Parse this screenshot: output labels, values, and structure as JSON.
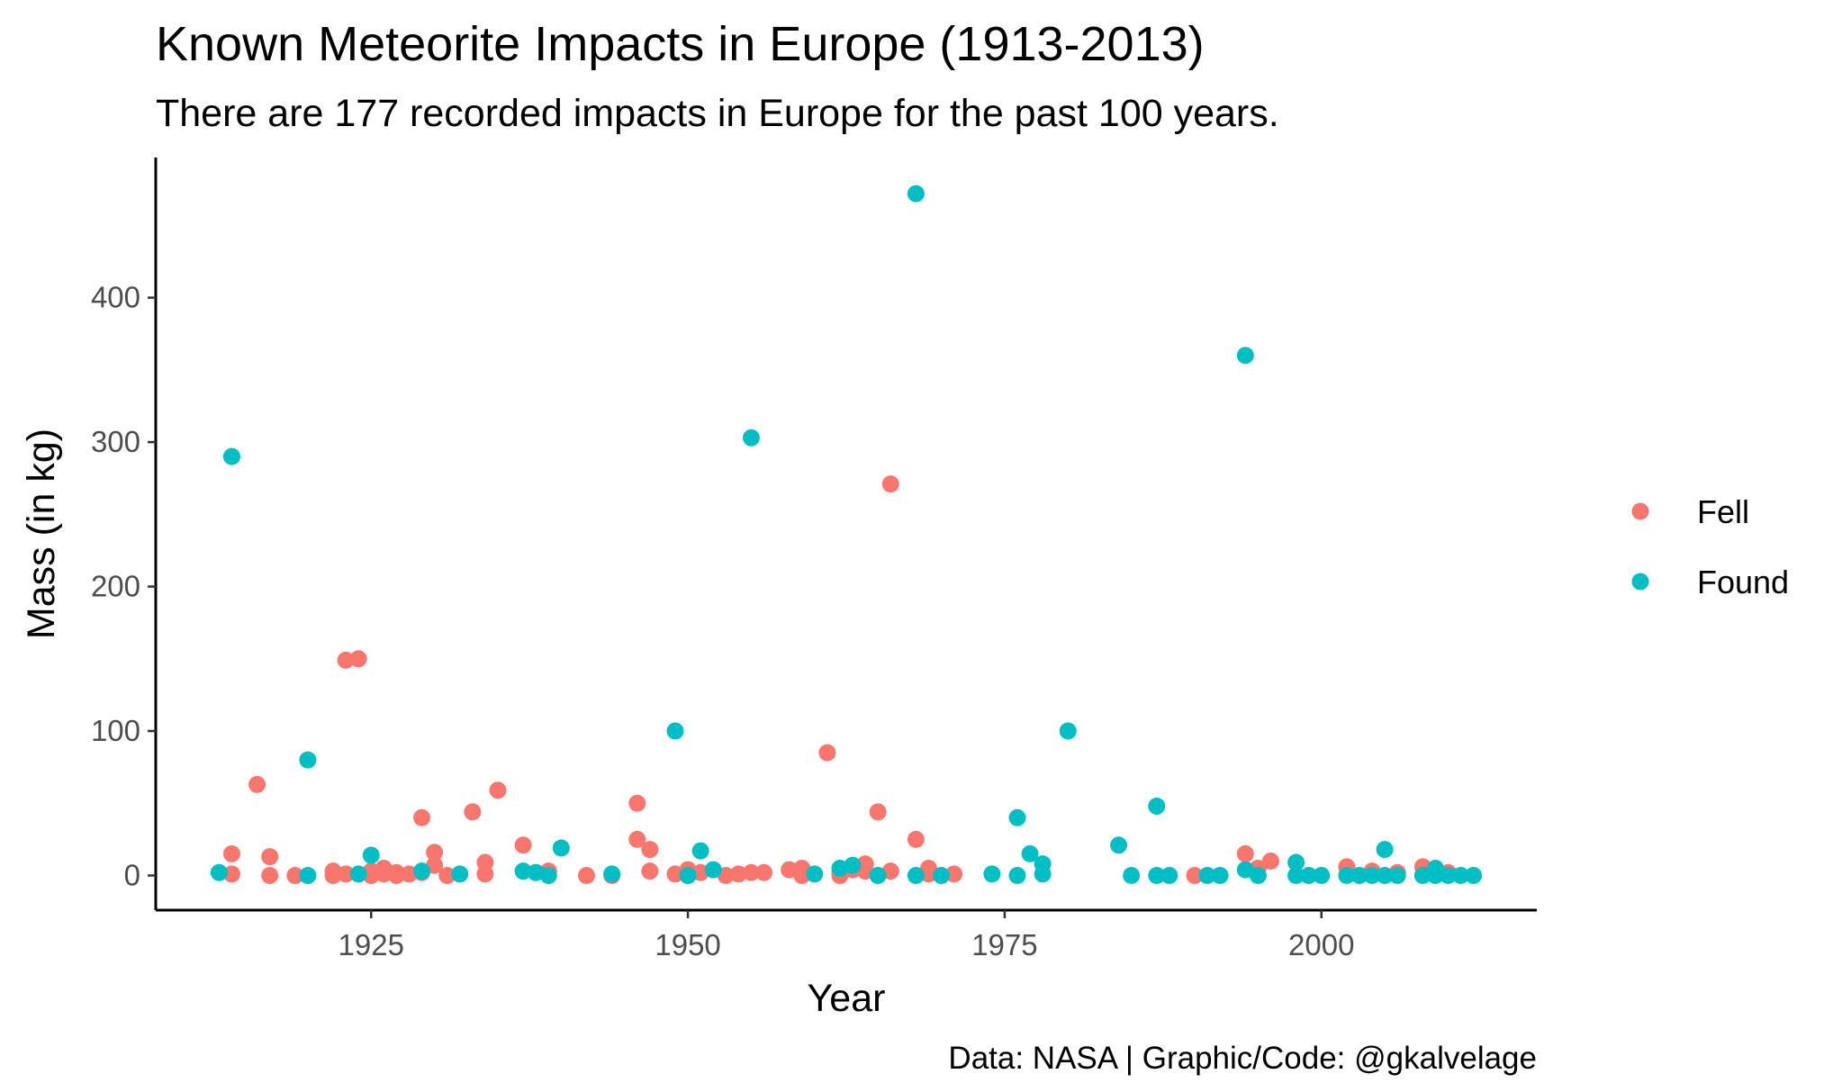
{
  "chart_data": {
    "type": "scatter",
    "title": "Known Meteorite Impacts in Europe (1913-2013)",
    "subtitle": "There are 177 recorded impacts in Europe for the past 100 years.",
    "xlabel": "Year",
    "ylabel": "Mass (in kg)",
    "caption": "Data: NASA | Graphic/Code: @gkalvelage",
    "xlim": [
      1908,
      2017
    ],
    "ylim": [
      -24,
      497
    ],
    "x_ticks": [
      1925,
      1950,
      1975,
      2000
    ],
    "y_ticks": [
      0,
      100,
      200,
      300,
      400
    ],
    "grid": false,
    "legend_position": "right",
    "series": [
      {
        "name": "Fell",
        "color": "#F8766D",
        "points": [
          [
            1914,
            15
          ],
          [
            1914,
            1
          ],
          [
            1916,
            63
          ],
          [
            1917,
            13
          ],
          [
            1917,
            0
          ],
          [
            1919,
            0
          ],
          [
            1922,
            3
          ],
          [
            1922,
            0
          ],
          [
            1923,
            149
          ],
          [
            1923,
            1
          ],
          [
            1924,
            150
          ],
          [
            1925,
            3
          ],
          [
            1925,
            0
          ],
          [
            1926,
            5
          ],
          [
            1926,
            1
          ],
          [
            1927,
            0
          ],
          [
            1927,
            2
          ],
          [
            1928,
            1
          ],
          [
            1929,
            40
          ],
          [
            1929,
            2
          ],
          [
            1930,
            16
          ],
          [
            1930,
            7
          ],
          [
            1931,
            0
          ],
          [
            1933,
            44
          ],
          [
            1934,
            9
          ],
          [
            1934,
            1
          ],
          [
            1935,
            59
          ],
          [
            1937,
            21
          ],
          [
            1938,
            2
          ],
          [
            1939,
            3
          ],
          [
            1942,
            0
          ],
          [
            1944,
            0
          ],
          [
            1946,
            50
          ],
          [
            1946,
            25
          ],
          [
            1947,
            18
          ],
          [
            1947,
            3
          ],
          [
            1949,
            1
          ],
          [
            1950,
            4
          ],
          [
            1950,
            0
          ],
          [
            1951,
            2
          ],
          [
            1953,
            0
          ],
          [
            1954,
            1
          ],
          [
            1955,
            2
          ],
          [
            1956,
            2
          ],
          [
            1958,
            4
          ],
          [
            1959,
            5
          ],
          [
            1959,
            0
          ],
          [
            1961,
            85
          ],
          [
            1962,
            2
          ],
          [
            1962,
            0
          ],
          [
            1963,
            4
          ],
          [
            1964,
            8
          ],
          [
            1964,
            3
          ],
          [
            1965,
            44
          ],
          [
            1966,
            271
          ],
          [
            1966,
            3
          ],
          [
            1968,
            25
          ],
          [
            1969,
            5
          ],
          [
            1969,
            1
          ],
          [
            1971,
            1
          ],
          [
            1990,
            0
          ],
          [
            1994,
            15
          ],
          [
            1995,
            5
          ],
          [
            1996,
            10
          ],
          [
            2002,
            6
          ],
          [
            2004,
            3
          ],
          [
            2006,
            2
          ],
          [
            2008,
            6
          ],
          [
            2009,
            3
          ],
          [
            2010,
            2
          ]
        ]
      },
      {
        "name": "Found",
        "color": "#00BFC4",
        "points": [
          [
            1913,
            2
          ],
          [
            1914,
            290
          ],
          [
            1920,
            80
          ],
          [
            1920,
            0
          ],
          [
            1924,
            1
          ],
          [
            1925,
            14
          ],
          [
            1929,
            3
          ],
          [
            1932,
            1
          ],
          [
            1937,
            3
          ],
          [
            1938,
            2
          ],
          [
            1939,
            0
          ],
          [
            1940,
            19
          ],
          [
            1944,
            1
          ],
          [
            1949,
            100
          ],
          [
            1950,
            0
          ],
          [
            1951,
            17
          ],
          [
            1952,
            4
          ],
          [
            1955,
            303
          ],
          [
            1960,
            1
          ],
          [
            1962,
            5
          ],
          [
            1963,
            7
          ],
          [
            1965,
            0
          ],
          [
            1968,
            472
          ],
          [
            1968,
            0
          ],
          [
            1970,
            0
          ],
          [
            1974,
            1
          ],
          [
            1976,
            40
          ],
          [
            1976,
            0
          ],
          [
            1977,
            15
          ],
          [
            1978,
            8
          ],
          [
            1978,
            1
          ],
          [
            1980,
            100
          ],
          [
            1984,
            21
          ],
          [
            1985,
            0
          ],
          [
            1987,
            48
          ],
          [
            1987,
            0
          ],
          [
            1988,
            0
          ],
          [
            1991,
            0
          ],
          [
            1992,
            0
          ],
          [
            1994,
            360
          ],
          [
            1994,
            4
          ],
          [
            1995,
            0
          ],
          [
            1998,
            9
          ],
          [
            1998,
            0
          ],
          [
            1999,
            0
          ],
          [
            2000,
            0
          ],
          [
            2002,
            0
          ],
          [
            2003,
            0
          ],
          [
            2004,
            0
          ],
          [
            2005,
            18
          ],
          [
            2005,
            0
          ],
          [
            2006,
            0
          ],
          [
            2008,
            0
          ],
          [
            2009,
            5
          ],
          [
            2009,
            0
          ],
          [
            2010,
            0
          ],
          [
            2011,
            0
          ],
          [
            2012,
            0
          ]
        ]
      }
    ]
  }
}
